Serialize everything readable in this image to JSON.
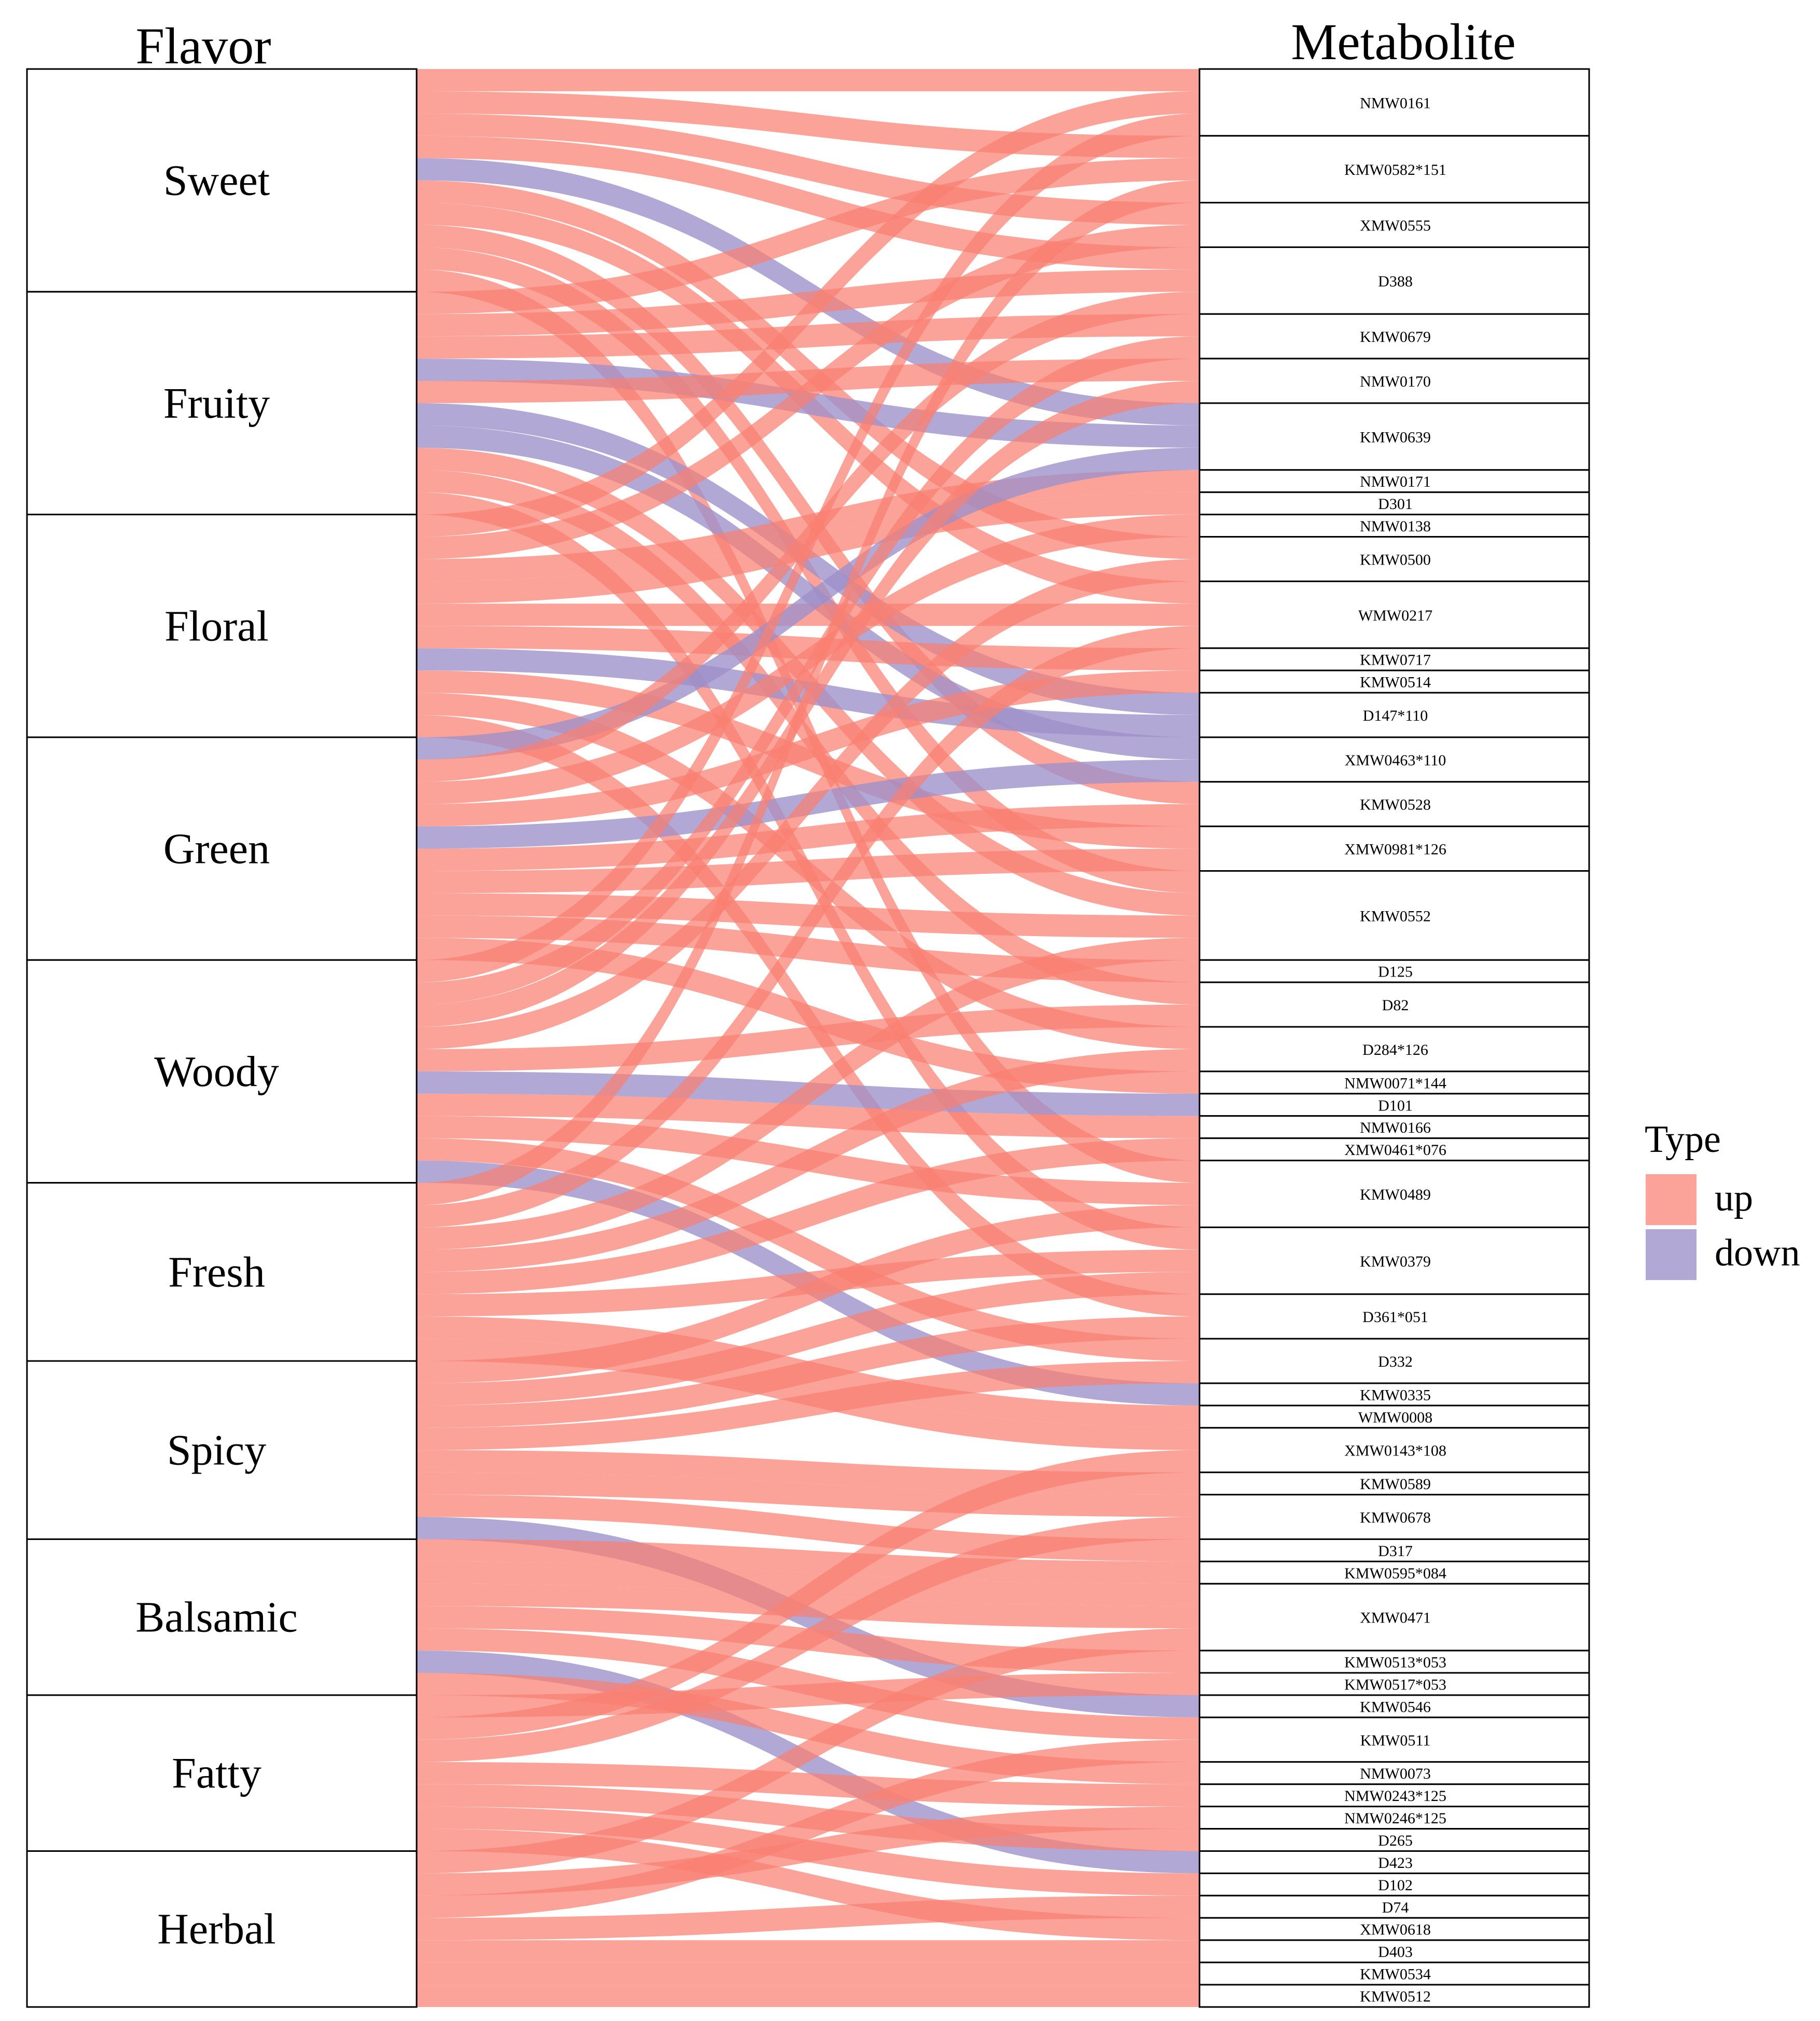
{
  "chart_data": {
    "type": "alluvial",
    "left_axis_title": "Flavor",
    "right_axis_title": "Metabolite",
    "legend": {
      "title": "Type",
      "entries": [
        {
          "label": "up",
          "key": "up"
        },
        {
          "label": "down",
          "key": "down"
        }
      ]
    },
    "colors": {
      "up": "#FA8072",
      "down": "#9C8FC9",
      "dark_up": "#F04A40",
      "dark_down": "#6E5EB0"
    },
    "flavors": [
      {
        "name": "Sweet",
        "count": 10
      },
      {
        "name": "Fruity",
        "count": 10
      },
      {
        "name": "Floral",
        "count": 10
      },
      {
        "name": "Green",
        "count": 10
      },
      {
        "name": "Woody",
        "count": 10
      },
      {
        "name": "Fresh",
        "count": 8
      },
      {
        "name": "Spicy",
        "count": 8
      },
      {
        "name": "Balsamic",
        "count": 7
      },
      {
        "name": "Fatty",
        "count": 7
      },
      {
        "name": "Herbal",
        "count": 7
      }
    ],
    "metabolites": [
      {
        "id": "NMW0161",
        "count": 3
      },
      {
        "id": "KMW0582*151",
        "count": 3
      },
      {
        "id": "XMW0555",
        "count": 2
      },
      {
        "id": "D388",
        "count": 3
      },
      {
        "id": "KMW0679",
        "count": 2
      },
      {
        "id": "NMW0170",
        "count": 2
      },
      {
        "id": "KMW0639",
        "count": 3
      },
      {
        "id": "NMW0171",
        "count": 1
      },
      {
        "id": "D301",
        "count": 1
      },
      {
        "id": "NMW0138",
        "count": 1
      },
      {
        "id": "KMW0500",
        "count": 2
      },
      {
        "id": "WMW0217",
        "count": 3
      },
      {
        "id": "KMW0717",
        "count": 1
      },
      {
        "id": "KMW0514",
        "count": 1
      },
      {
        "id": "D147*110",
        "count": 2
      },
      {
        "id": "XMW0463*110",
        "count": 2
      },
      {
        "id": "KMW0528",
        "count": 2
      },
      {
        "id": "XMW0981*126",
        "count": 2
      },
      {
        "id": "KMW0552",
        "count": 4
      },
      {
        "id": "D125",
        "count": 1
      },
      {
        "id": "D82",
        "count": 2
      },
      {
        "id": "D284*126",
        "count": 2
      },
      {
        "id": "NMW0071*144",
        "count": 1
      },
      {
        "id": "D101",
        "count": 1
      },
      {
        "id": "NMW0166",
        "count": 1
      },
      {
        "id": "XMW0461*076",
        "count": 1
      },
      {
        "id": "KMW0489",
        "count": 3
      },
      {
        "id": "KMW0379",
        "count": 3
      },
      {
        "id": "D361*051",
        "count": 2
      },
      {
        "id": "D332",
        "count": 2
      },
      {
        "id": "KMW0335",
        "count": 1
      },
      {
        "id": "WMW0008",
        "count": 1
      },
      {
        "id": "XMW0143*108",
        "count": 2
      },
      {
        "id": "KMW0589",
        "count": 1
      },
      {
        "id": "KMW0678",
        "count": 2
      },
      {
        "id": "D317",
        "count": 1
      },
      {
        "id": "KMW0595*084",
        "count": 1
      },
      {
        "id": "XMW0471",
        "count": 3
      },
      {
        "id": "KMW0513*053",
        "count": 1
      },
      {
        "id": "KMW0517*053",
        "count": 1
      },
      {
        "id": "KMW0546",
        "count": 1
      },
      {
        "id": "KMW0511",
        "count": 2
      },
      {
        "id": "NMW0073",
        "count": 1
      },
      {
        "id": "NMW0243*125",
        "count": 1
      },
      {
        "id": "NMW0246*125",
        "count": 1
      },
      {
        "id": "D265",
        "count": 1
      },
      {
        "id": "D423",
        "count": 1
      },
      {
        "id": "D102",
        "count": 1
      },
      {
        "id": "D74",
        "count": 1
      },
      {
        "id": "XMW0618",
        "count": 1
      },
      {
        "id": "D403",
        "count": 1
      },
      {
        "id": "KMW0534",
        "count": 1
      },
      {
        "id": "KMW0512",
        "count": 1
      }
    ],
    "flows": [
      [
        "Sweet",
        "NMW0161",
        "up"
      ],
      [
        "Sweet",
        "KMW0582*151",
        "up"
      ],
      [
        "Sweet",
        "XMW0555",
        "up"
      ],
      [
        "Sweet",
        "D388",
        "up"
      ],
      [
        "Sweet",
        "KMW0639",
        "down"
      ],
      [
        "Sweet",
        "KMW0500",
        "up"
      ],
      [
        "Sweet",
        "WMW0217",
        "up"
      ],
      [
        "Sweet",
        "KMW0528",
        "up"
      ],
      [
        "Sweet",
        "KMW0552",
        "up"
      ],
      [
        "Sweet",
        "KMW0489",
        "up"
      ],
      [
        "Fruity",
        "KMW0582*151",
        "up"
      ],
      [
        "Fruity",
        "D388",
        "up"
      ],
      [
        "Fruity",
        "KMW0679",
        "up"
      ],
      [
        "Fruity",
        "KMW0639",
        "down"
      ],
      [
        "Fruity",
        "NMW0170",
        "up"
      ],
      [
        "Fruity",
        "D147*110",
        "down"
      ],
      [
        "Fruity",
        "XMW0463*110",
        "down"
      ],
      [
        "Fruity",
        "KMW0552",
        "up"
      ],
      [
        "Fruity",
        "D82",
        "up"
      ],
      [
        "Fruity",
        "KMW0379",
        "up"
      ],
      [
        "Floral",
        "NMW0161",
        "up"
      ],
      [
        "Floral",
        "XMW0555",
        "up"
      ],
      [
        "Floral",
        "NMW0171",
        "up"
      ],
      [
        "Floral",
        "D301",
        "up"
      ],
      [
        "Floral",
        "WMW0217",
        "up"
      ],
      [
        "Floral",
        "KMW0717",
        "up"
      ],
      [
        "Floral",
        "D147*110",
        "down"
      ],
      [
        "Floral",
        "XMW0981*126",
        "up"
      ],
      [
        "Floral",
        "D284*126",
        "up"
      ],
      [
        "Floral",
        "D361*051",
        "up"
      ],
      [
        "Green",
        "KMW0639",
        "down"
      ],
      [
        "Green",
        "D388",
        "up"
      ],
      [
        "Green",
        "NMW0138",
        "up"
      ],
      [
        "Green",
        "KMW0514",
        "up"
      ],
      [
        "Green",
        "XMW0463*110",
        "down"
      ],
      [
        "Green",
        "KMW0528",
        "up"
      ],
      [
        "Green",
        "XMW0981*126",
        "up"
      ],
      [
        "Green",
        "KMW0552",
        "up"
      ],
      [
        "Green",
        "D125",
        "up"
      ],
      [
        "Green",
        "NMW0071*144",
        "up"
      ],
      [
        "Woody",
        "NMW0161",
        "up"
      ],
      [
        "Woody",
        "KMW0679",
        "up"
      ],
      [
        "Woody",
        "NMW0170",
        "up"
      ],
      [
        "Woody",
        "KMW0500",
        "up"
      ],
      [
        "Woody",
        "D82",
        "up"
      ],
      [
        "Woody",
        "D101",
        "down"
      ],
      [
        "Woody",
        "NMW0166",
        "up"
      ],
      [
        "Woody",
        "KMW0489",
        "up"
      ],
      [
        "Woody",
        "D332",
        "up"
      ],
      [
        "Woody",
        "KMW0335",
        "down"
      ],
      [
        "Fresh",
        "KMW0582*151",
        "up"
      ],
      [
        "Fresh",
        "WMW0217",
        "up"
      ],
      [
        "Fresh",
        "KMW0552",
        "up"
      ],
      [
        "Fresh",
        "D284*126",
        "up"
      ],
      [
        "Fresh",
        "XMW0461*076",
        "up"
      ],
      [
        "Fresh",
        "KMW0379",
        "up"
      ],
      [
        "Fresh",
        "WMW0008",
        "up"
      ],
      [
        "Fresh",
        "XMW0143*108",
        "up"
      ],
      [
        "Spicy",
        "KMW0489",
        "up"
      ],
      [
        "Spicy",
        "KMW0379",
        "up"
      ],
      [
        "Spicy",
        "D361*051",
        "up"
      ],
      [
        "Spicy",
        "D332",
        "up"
      ],
      [
        "Spicy",
        "KMW0589",
        "up"
      ],
      [
        "Spicy",
        "KMW0678",
        "up"
      ],
      [
        "Spicy",
        "D317",
        "up"
      ],
      [
        "Spicy",
        "KMW0546",
        "down"
      ],
      [
        "Balsamic",
        "KMW0595*084",
        "up"
      ],
      [
        "Balsamic",
        "XMW0471",
        "up"
      ],
      [
        "Balsamic",
        "XMW0471",
        "up"
      ],
      [
        "Balsamic",
        "KMW0513*053",
        "up"
      ],
      [
        "Balsamic",
        "KMW0511",
        "up"
      ],
      [
        "Balsamic",
        "D423",
        "down"
      ],
      [
        "Balsamic",
        "NMW0073",
        "up"
      ],
      [
        "Fatty",
        "KMW0517*053",
        "up"
      ],
      [
        "Fatty",
        "XMW0143*108",
        "up"
      ],
      [
        "Fatty",
        "KMW0678",
        "up"
      ],
      [
        "Fatty",
        "NMW0243*125",
        "up"
      ],
      [
        "Fatty",
        "D265",
        "up"
      ],
      [
        "Fatty",
        "D102",
        "up"
      ],
      [
        "Fatty",
        "XMW0618",
        "up"
      ],
      [
        "Herbal",
        "XMW0471",
        "up"
      ],
      [
        "Herbal",
        "NMW0246*125",
        "up"
      ],
      [
        "Herbal",
        "KMW0511",
        "up"
      ],
      [
        "Herbal",
        "D74",
        "up"
      ],
      [
        "Herbal",
        "D403",
        "up"
      ],
      [
        "Herbal",
        "KMW0534",
        "up"
      ],
      [
        "Herbal",
        "KMW0512",
        "up"
      ]
    ]
  }
}
